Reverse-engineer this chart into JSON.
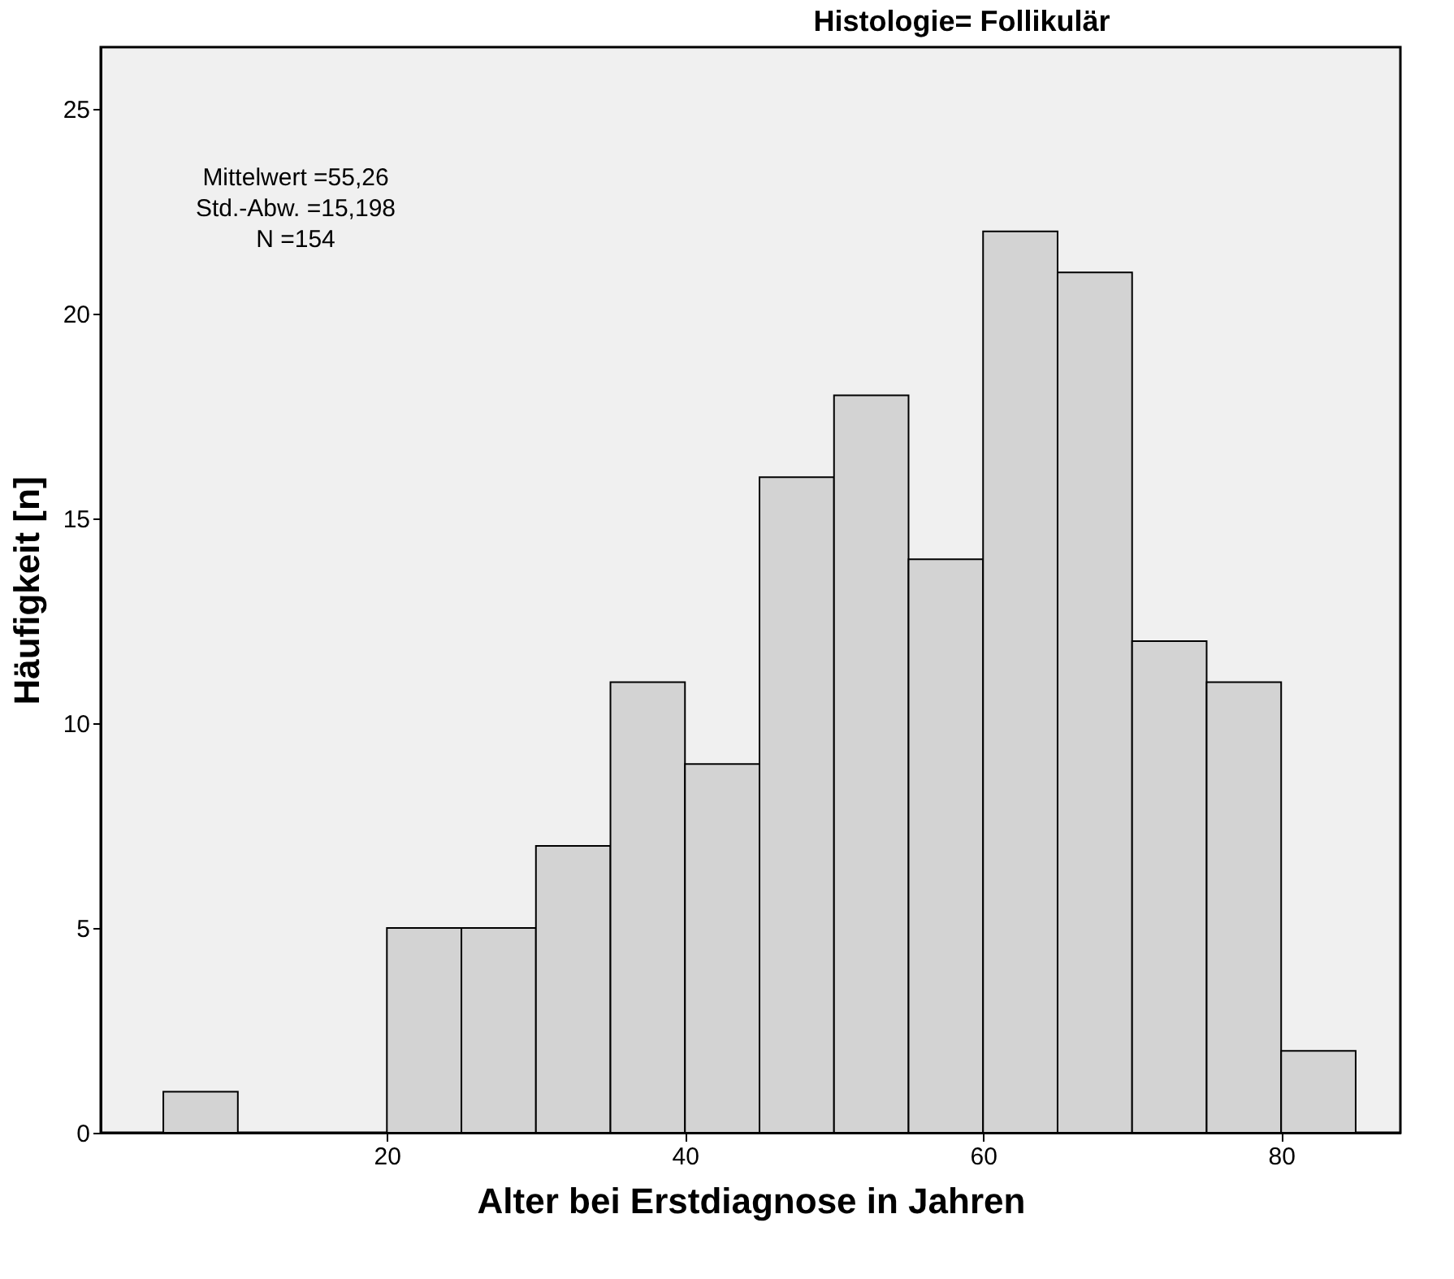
{
  "chart_data": {
    "type": "histogram",
    "title": "Histologie= Follikulär",
    "xlabel": "Alter bei Erstdiagnose in Jahren",
    "ylabel": "Häufigkeit [n]",
    "bins": [
      5,
      10,
      15,
      20,
      25,
      30,
      35,
      40,
      45,
      50,
      55,
      60,
      65,
      70,
      75,
      80,
      85
    ],
    "values": [
      1,
      0,
      0,
      5,
      5,
      7,
      11,
      9,
      16,
      18,
      14,
      22,
      21,
      12,
      11,
      2
    ],
    "color": "#d3d3d3",
    "xlim": [
      0.8,
      88
    ],
    "xticks": [
      20,
      40,
      60,
      80
    ],
    "ylim": [
      0,
      26.5
    ],
    "yticks": [
      0,
      5,
      10,
      15,
      20,
      25
    ],
    "grid": false,
    "annotations": [
      "Mittelwert =55,26",
      "Std.-Abw. =15,198",
      "N =154"
    ]
  }
}
